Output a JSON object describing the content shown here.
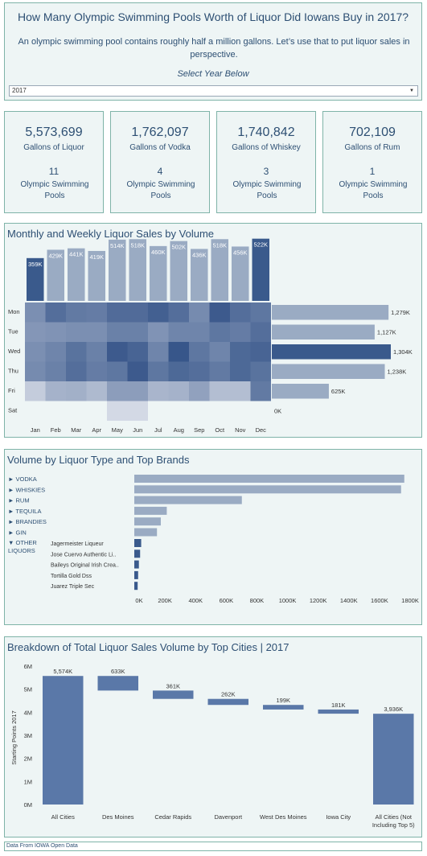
{
  "header": {
    "title": "How Many Olympic Swimming Pools Worth of Liquor Did Iowans Buy in 2017?",
    "subtitle": "An olympic swimming pool contains roughly half a million gallons. Let’s use that to put liquor sales in perspective.",
    "select_label": "Select Year Below",
    "selected_year": "2017"
  },
  "kpis": [
    {
      "value": "5,573,699",
      "label": "Gallons of Liquor",
      "pools": "11",
      "pools_label": "Olympic Swimming Pools"
    },
    {
      "value": "1,762,097",
      "label": "Gallons of Vodka",
      "pools": "4",
      "pools_label": "Olympic Swimming Pools"
    },
    {
      "value": "1,740,842",
      "label": "Gallons of Whiskey",
      "pools": "3",
      "pools_label": "Olympic Swimming Pools"
    },
    {
      "value": "702,109",
      "label": "Gallons of Rum",
      "pools": "1",
      "pools_label": "Olympic Swimming Pools"
    }
  ],
  "footer": "Data From IOWA Open Data",
  "colors": {
    "dark": "#3a5a8c",
    "mid": "#5a78a8",
    "light": "#9aabc3",
    "panel_border": "#7fb3a8"
  },
  "chart_data": [
    {
      "type": "heatmap",
      "title": "Monthly and Weekly Liquor Sales by Volume",
      "months": [
        "Jan",
        "Feb",
        "Mar",
        "Apr",
        "May",
        "Jun",
        "Jul",
        "Aug",
        "Sep",
        "Oct",
        "Nov",
        "Dec"
      ],
      "monthly_values": [
        359,
        429,
        441,
        419,
        514,
        518,
        460,
        502,
        436,
        518,
        456,
        522
      ],
      "monthly_labels": [
        "359K",
        "429K",
        "441K",
        "419K",
        "514K",
        "518K",
        "460K",
        "502K",
        "436K",
        "518K",
        "456K",
        "522K"
      ],
      "monthly_highlight": [
        true,
        false,
        false,
        false,
        false,
        false,
        false,
        false,
        false,
        false,
        false,
        true
      ],
      "days": [
        "Mon",
        "Tue",
        "Wed",
        "Thu",
        "Fri",
        "Sat"
      ],
      "day_values": [
        1279,
        1127,
        1304,
        1238,
        625,
        0
      ],
      "day_labels": [
        "1,279K",
        "1,127K",
        "1,304K",
        "1,238K",
        "625K",
        "0K"
      ],
      "day_highlight": [
        false,
        false,
        true,
        false,
        false,
        false
      ],
      "cells": [
        [
          0.55,
          0.78,
          0.7,
          0.68,
          0.8,
          0.8,
          0.88,
          0.78,
          0.58,
          0.92,
          0.78,
          0.72
        ],
        [
          0.5,
          0.52,
          0.55,
          0.55,
          0.65,
          0.65,
          0.52,
          0.62,
          0.62,
          0.72,
          0.68,
          0.78
        ],
        [
          0.55,
          0.62,
          0.75,
          0.65,
          0.92,
          0.85,
          0.62,
          0.95,
          0.72,
          0.62,
          0.82,
          0.85
        ],
        [
          0.58,
          0.65,
          0.78,
          0.68,
          0.72,
          0.92,
          0.72,
          0.82,
          0.78,
          0.7,
          0.82,
          0.75
        ],
        [
          0.12,
          0.3,
          0.32,
          0.25,
          0.45,
          0.45,
          0.28,
          0.3,
          0.42,
          0.22,
          0.22,
          0.7
        ],
        [
          0,
          0,
          0,
          0,
          0.03,
          0.03,
          0,
          0,
          0,
          0,
          0,
          0
        ]
      ]
    },
    {
      "type": "bar",
      "title": "Volume by Liquor Type and Top Brands",
      "categories": [
        "► VODKA",
        "► WHISKIES",
        "► RUM",
        "► TEQUILA",
        "► BRANDIES",
        "► GIN"
      ],
      "values": [
        1762,
        1741,
        702,
        212,
        173,
        148
      ],
      "group_label": "▼ OTHER LIQUORS",
      "brands": [
        "Jagermeister Liqueur",
        "Jose Cuervo Authentic Li..",
        "Baileys Original Irish Crea..",
        "Tortilla Gold Dss",
        "Juarez Triple Sec"
      ],
      "brand_values": [
        45,
        38,
        30,
        25,
        22
      ],
      "x_ticks": [
        "0K",
        "200K",
        "400K",
        "600K",
        "800K",
        "1000K",
        "1200K",
        "1400K",
        "1600K",
        "1800K"
      ],
      "xlim": [
        0,
        1800
      ]
    },
    {
      "type": "bar",
      "title": "Breakdown of Total Liquor Sales Volume by Top Cities | 2017",
      "ylabel": "Starting Points 2017",
      "categories": [
        "All Cities",
        "Des Moines",
        "Cedar Rapids",
        "Davenport",
        "West Des Moines",
        "Iowa City",
        "All Cities (Not Including Top 5)"
      ],
      "values": [
        5574,
        633,
        361,
        262,
        199,
        181,
        3936
      ],
      "labels": [
        "5,574K",
        "633K",
        "361K",
        "262K",
        "199K",
        "181K",
        "3,936K"
      ],
      "y_ticks": [
        "0M",
        "1M",
        "2M",
        "3M",
        "4M",
        "5M",
        "6M"
      ],
      "ylim": [
        0,
        6000
      ]
    }
  ]
}
